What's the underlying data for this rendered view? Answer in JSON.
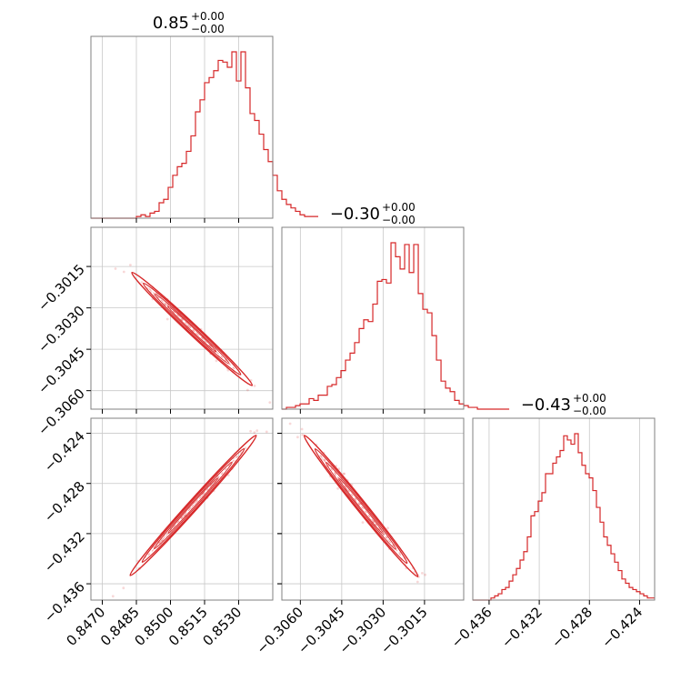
{
  "chart_data": {
    "type": "corner",
    "color": "#d62728",
    "grid": true,
    "parameters": [
      {
        "title_main": "0.85",
        "title_up": "+0.00",
        "title_down": "−0.00",
        "range": [
          0.8465,
          0.8545
        ],
        "ticks": [
          0.847,
          0.8485,
          0.85,
          0.8515,
          0.853
        ],
        "tick_labels": [
          "0.8470",
          "0.8485",
          "0.8500",
          "0.8515",
          "0.8530"
        ],
        "hist_edges_start": 0.8465,
        "hist_bin_width": 0.0002,
        "hist_counts": [
          0,
          0,
          0,
          0,
          0,
          0,
          0,
          0,
          0,
          0,
          1,
          2,
          1,
          3,
          4,
          9,
          11,
          18,
          25,
          30,
          32,
          39,
          48,
          62,
          69,
          79,
          82,
          86,
          92,
          91,
          88,
          97,
          80,
          97,
          76,
          61,
          57,
          49,
          40,
          33,
          25,
          16,
          11,
          8,
          6,
          4,
          2,
          1,
          1,
          1
        ]
      },
      {
        "title_main": "−0.30",
        "title_up": "+0.00",
        "title_down": "−0.00",
        "range": [
          -0.30667,
          -0.30008
        ],
        "ticks": [
          -0.306,
          -0.3045,
          -0.303,
          -0.3015
        ],
        "tick_labels": [
          "−0.3060",
          "−0.3045",
          "−0.3030",
          "−0.3015"
        ],
        "hist_edges_start": -0.30667,
        "hist_bin_width": 0.0001648,
        "hist_counts": [
          0,
          1,
          1,
          2,
          3,
          3,
          6,
          5,
          8,
          8,
          13,
          14,
          18,
          22,
          28,
          32,
          38,
          46,
          51,
          50,
          60,
          73,
          74,
          72,
          95,
          87,
          80,
          94,
          78,
          94,
          66,
          57,
          55,
          42,
          28,
          16,
          12,
          10,
          5,
          3,
          2,
          1,
          1,
          0,
          0,
          0,
          0,
          0,
          0,
          0
        ]
      },
      {
        "title_main": "−0.43",
        "title_up": "+0.00",
        "title_down": "−0.00",
        "range": [
          -0.4373,
          -0.4228
        ],
        "ticks": [
          -0.436,
          -0.432,
          -0.428,
          -0.424
        ],
        "tick_labels": [
          "−0.436",
          "−0.432",
          "−0.428",
          "−0.424"
        ],
        "hist_edges_start": -0.4373,
        "hist_bin_width": 0.00029,
        "hist_counts": [
          0,
          0,
          0,
          0,
          0,
          1,
          2,
          3,
          5,
          6,
          9,
          12,
          15,
          19,
          23,
          30,
          40,
          42,
          47,
          51,
          60,
          60,
          65,
          68,
          71,
          78,
          76,
          74,
          79,
          70,
          64,
          60,
          58,
          52,
          44,
          37,
          30,
          26,
          22,
          18,
          14,
          10,
          8,
          6,
          5,
          4,
          3,
          2,
          1,
          1
        ]
      }
    ],
    "joint_samples": [
      {
        "x": 0.8478,
        "y": -0.30133
      },
      {
        "x": 0.8488,
        "y": -0.3019
      },
      {
        "x": 0.8492,
        "y": -0.3023
      },
      {
        "x": 0.8494,
        "y": -0.3024
      },
      {
        "x": 0.8505,
        "y": -0.3031
      },
      {
        "x": 0.8506,
        "y": -0.3034
      },
      {
        "x": 0.8515,
        "y": -0.3042
      },
      {
        "x": 0.8527,
        "y": -0.3048
      },
      {
        "x": 0.8528,
        "y": -0.3052
      },
      {
        "x": 0.8535,
        "y": -0.3056
      },
      {
        "x": 0.8541,
        "y": -0.3062
      }
    ]
  }
}
